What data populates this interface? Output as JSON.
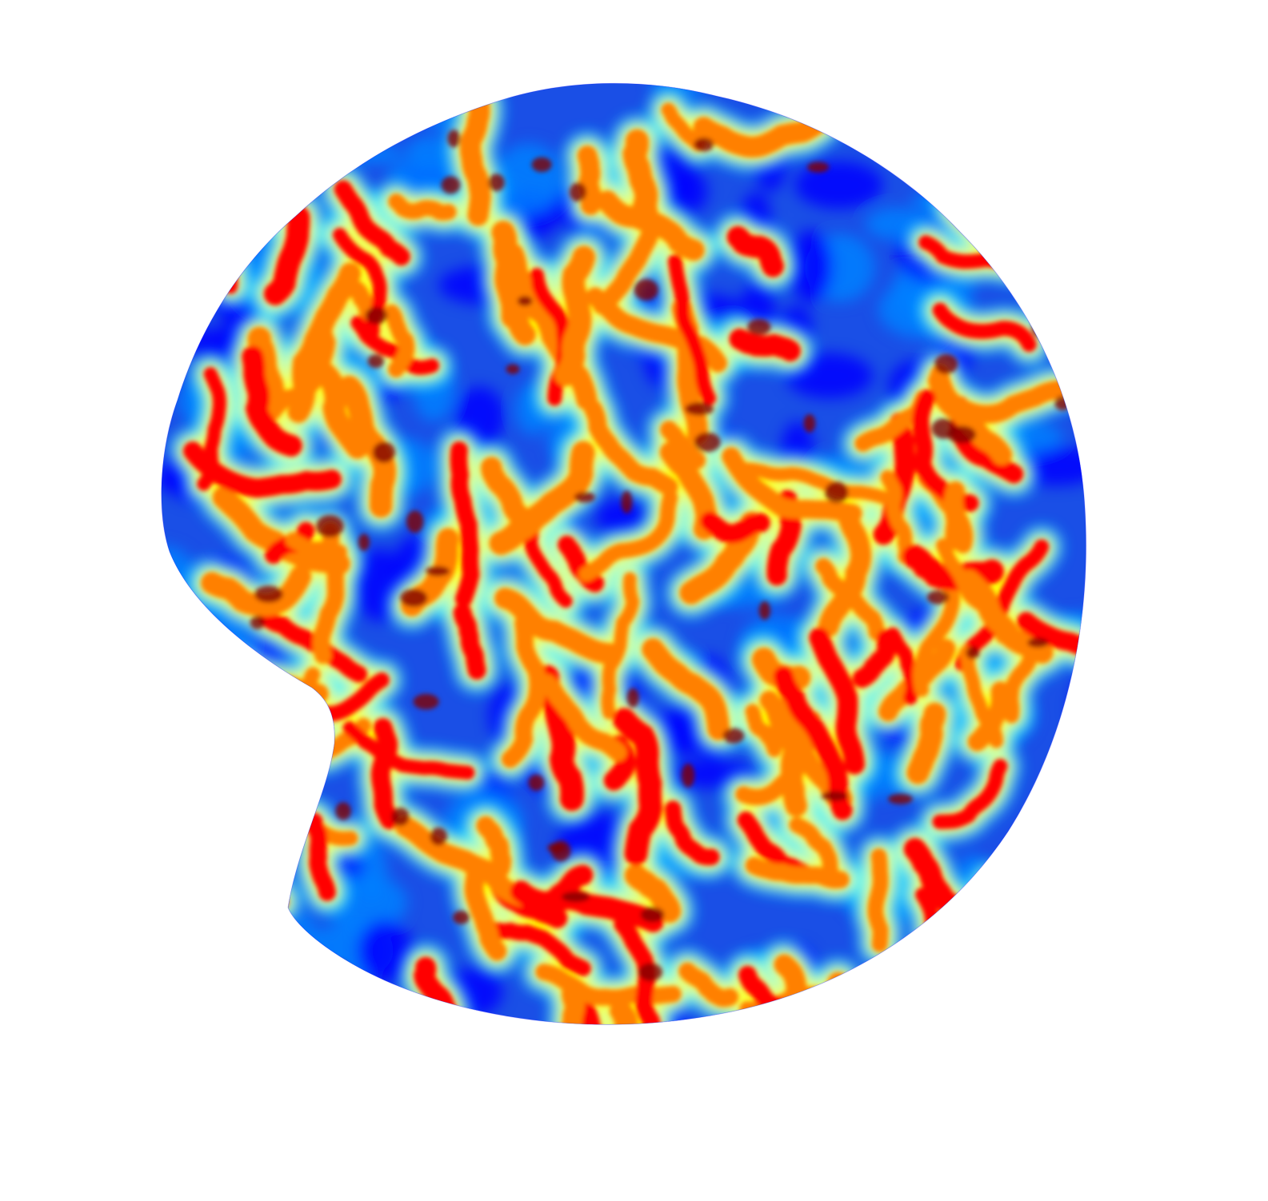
{
  "figure": {
    "kind": "surface-colormap-render",
    "colormap": "jet",
    "colormap_stops": [
      "#00008f",
      "#0000ff",
      "#0080ff",
      "#00ffff",
      "#80ff80",
      "#ffff00",
      "#ff8000",
      "#ff0000",
      "#800000"
    ],
    "background": "#ffffff",
    "dominant_color": "#1a4fe6"
  }
}
